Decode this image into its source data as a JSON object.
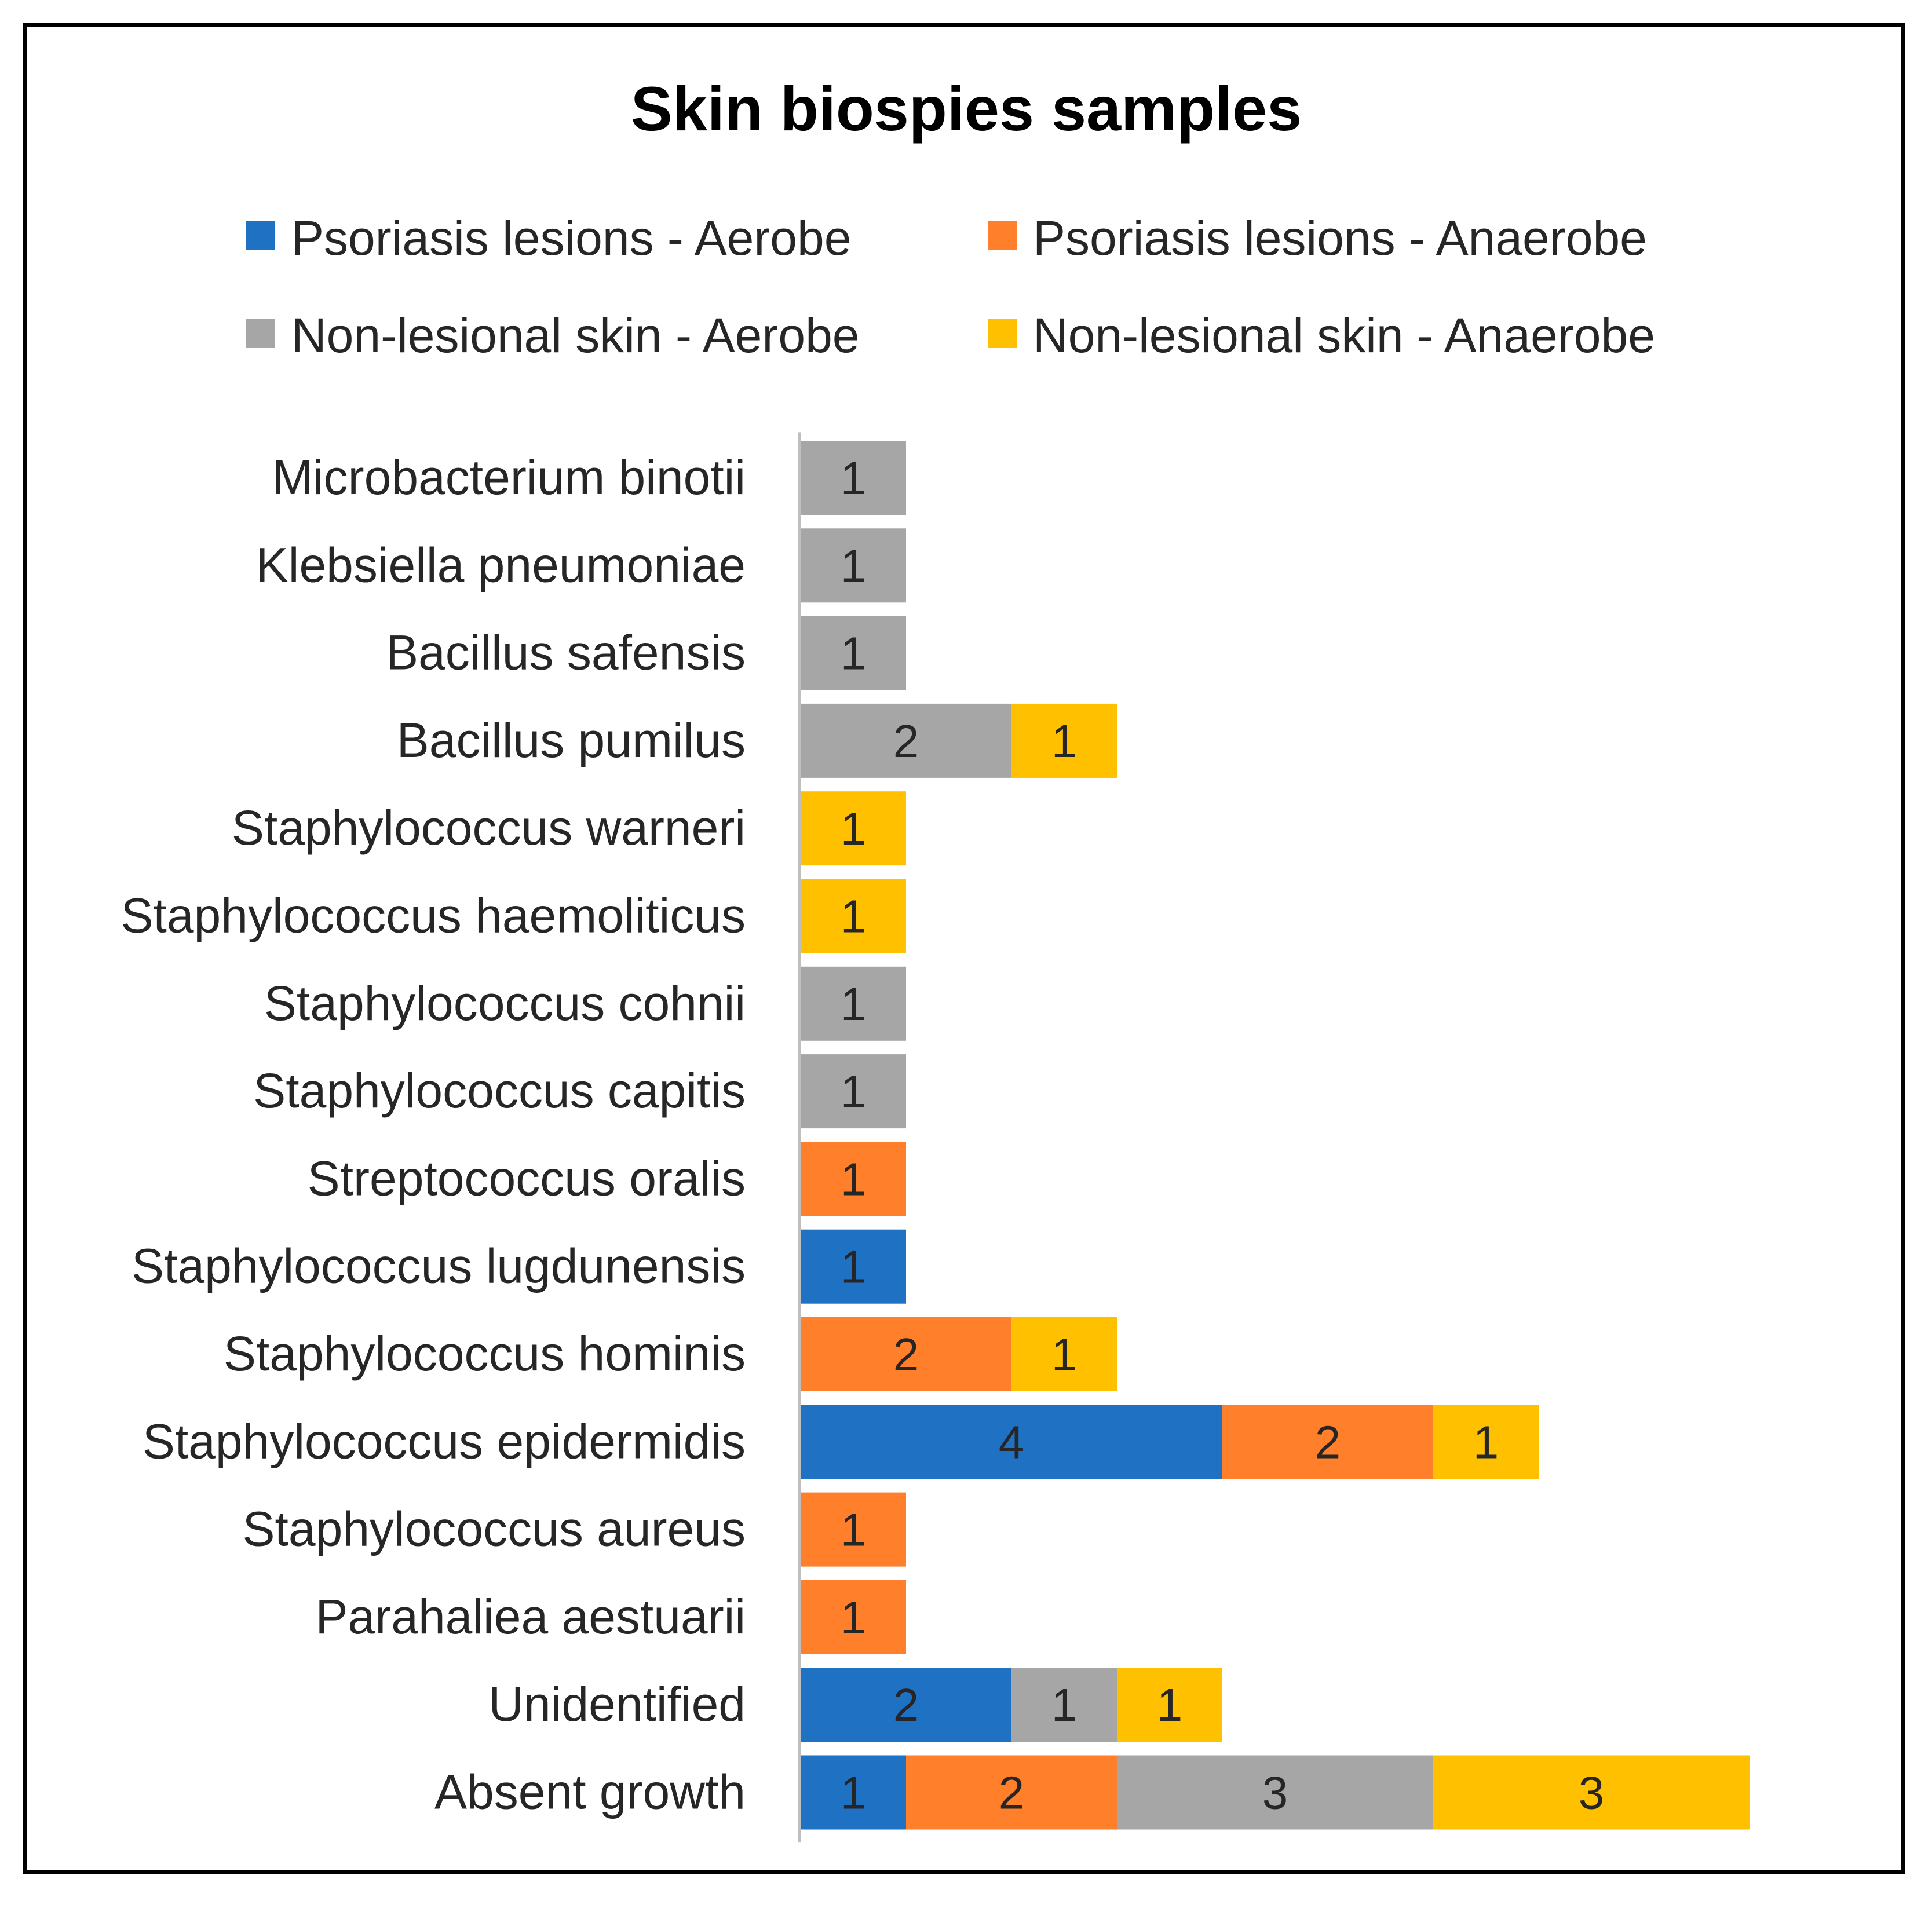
{
  "chart_data": {
    "type": "bar",
    "orientation": "horizontal",
    "stacked": true,
    "title": "Skin biospies samples",
    "xlabel": "",
    "ylabel": "",
    "grid": false,
    "legend_position": "top",
    "categories": [
      "Microbacterium binotii",
      "Klebsiella pneumoniae",
      "Bacillus safensis",
      "Bacillus pumilus",
      "Staphylococcus warneri",
      "Staphylococcus haemoliticus",
      "Staphylococcus cohnii",
      "Staphylococcus capitis",
      "Streptococcus oralis",
      "Staphylococcus lugdunensis",
      "Staphylococcus hominis",
      "Staphylococcus epidermidis",
      "Staphylococcus aureus",
      "Parahaliea aestuarii",
      "Unidentified",
      "Absent growth"
    ],
    "series": [
      {
        "name": "Psoriasis lesions - Aerobe",
        "color": "#1F71C4",
        "values": [
          0,
          0,
          0,
          0,
          0,
          0,
          0,
          0,
          0,
          1,
          0,
          4,
          0,
          0,
          2,
          1
        ]
      },
      {
        "name": "Psoriasis lesions - Anaerobe",
        "color": "#FF7F2A",
        "values": [
          0,
          0,
          0,
          0,
          0,
          0,
          0,
          0,
          1,
          0,
          2,
          2,
          1,
          1,
          0,
          2
        ]
      },
      {
        "name": "Non-lesional skin - Aerobe",
        "color": "#A6A6A6",
        "values": [
          1,
          1,
          1,
          2,
          0,
          0,
          1,
          1,
          0,
          0,
          0,
          0,
          0,
          0,
          1,
          3
        ]
      },
      {
        "name": "Non-lesional skin - Anaerobe",
        "color": "#FFC000",
        "values": [
          0,
          0,
          0,
          1,
          1,
          1,
          0,
          0,
          0,
          0,
          1,
          1,
          0,
          0,
          1,
          3
        ]
      }
    ],
    "data_labels": true
  }
}
